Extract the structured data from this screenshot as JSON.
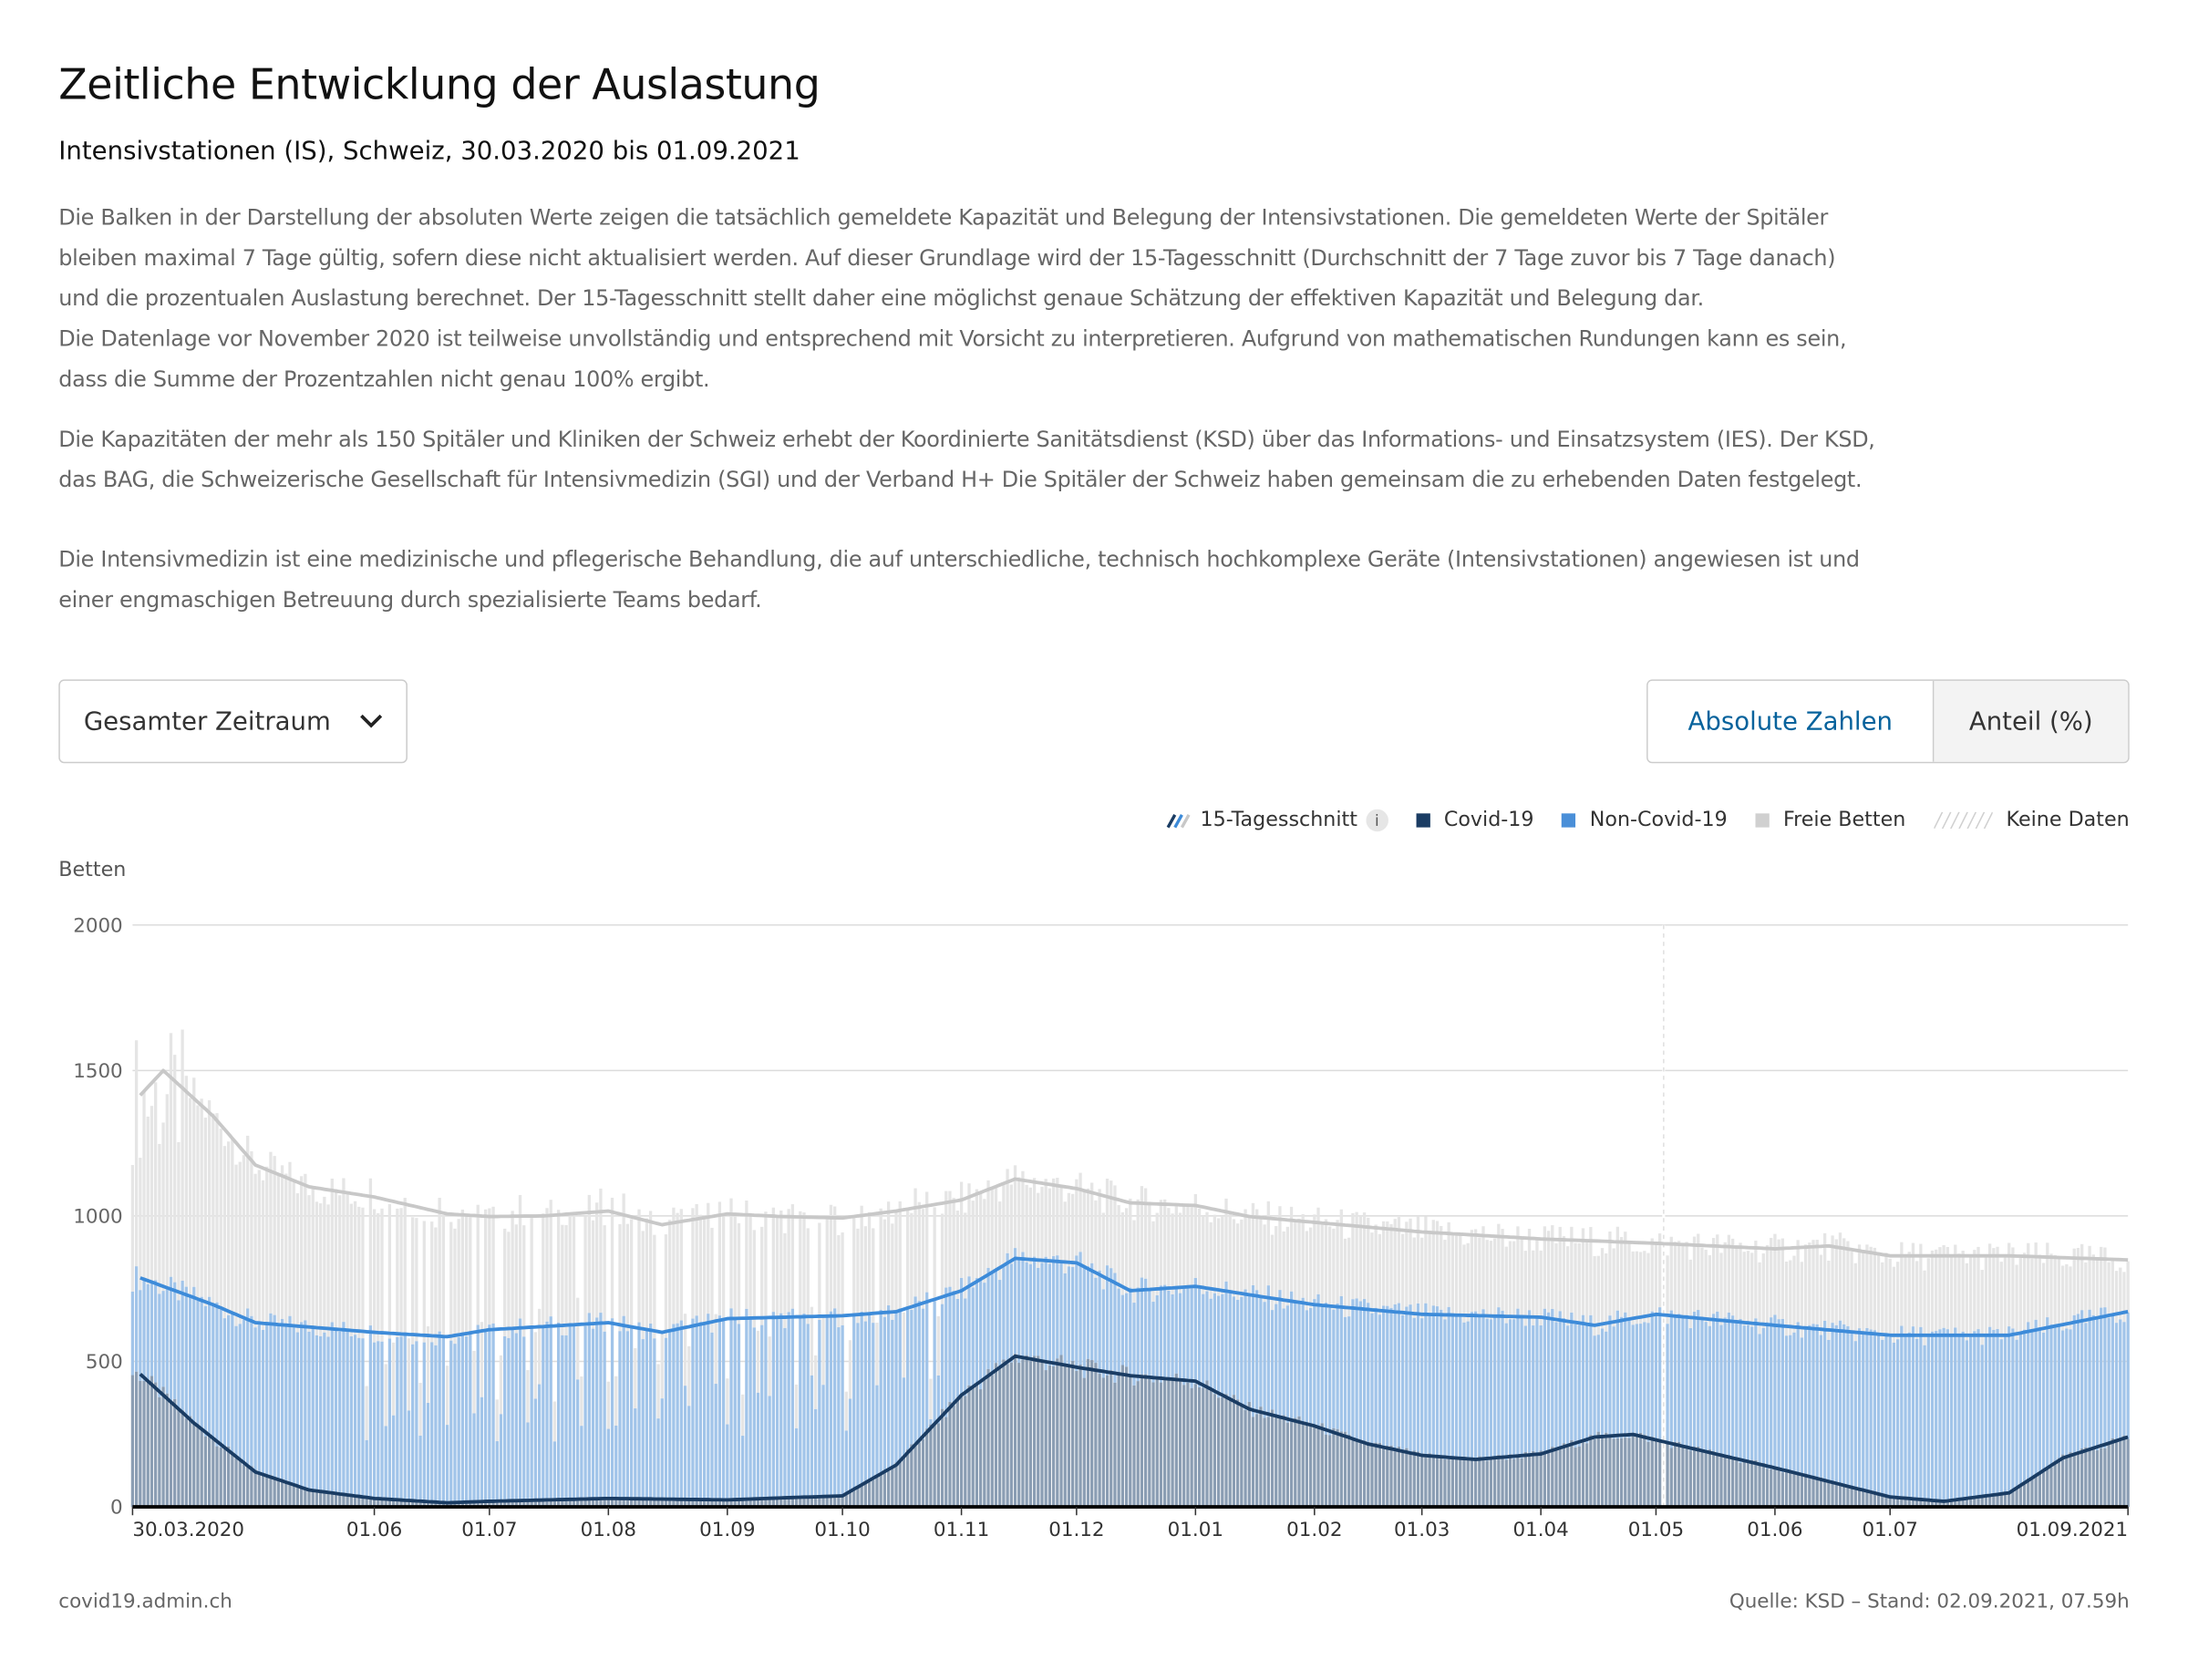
{
  "title": "Zeitliche Entwicklung der Auslastung",
  "subtitle": "Intensivstationen (IS), Schweiz, 30.03.2020 bis 01.09.2021",
  "description": {
    "p1": [
      "Die Balken in der Darstellung der absoluten Werte zeigen die tatsächlich gemeldete Kapazität und Belegung der Intensivstationen. Die gemeldeten Werte der Spitäler",
      "bleiben maximal 7 Tage gültig, sofern diese nicht aktualisiert werden. Auf dieser Grundlage wird der 15-Tagesschnitt (Durchschnitt der 7 Tage zuvor bis 7 Tage danach)",
      "und die prozentualen Auslastung berechnet. Der 15-Tagesschnitt stellt daher eine möglichst genaue Schätzung der effektiven Kapazität und Belegung dar.",
      "Die Datenlage vor November 2020 ist teilweise unvollständig und entsprechend mit Vorsicht zu interpretieren. Aufgrund von mathematischen Rundungen kann es sein,",
      "dass die Summe der Prozentzahlen nicht genau 100% ergibt."
    ],
    "p2": [
      "Die Kapazitäten der mehr als 150 Spitäler und Kliniken der Schweiz erhebt der Koordinierte Sanitätsdienst (KSD) über das Informations- und Einsatzsystem (IES). Der KSD,",
      "das BAG, die Schweizerische Gesellschaft für Intensivmedizin (SGI) und der Verband H+ Die Spitäler der Schweiz haben gemeinsam die zu erhebenden Daten festgelegt."
    ],
    "p3": [
      "Die Intensivmedizin ist eine medizinische und pflegerische Behandlung, die auf unterschiedliche, technisch hochkomplexe Geräte (Intensivstationen) angewiesen ist und",
      "einer engmaschigen Betreuung durch spezialisierte Teams bedarf."
    ]
  },
  "controls": {
    "period_select": "Gesamter Zeitraum",
    "toggle": [
      "Absolute Zahlen",
      "Anteil (%)"
    ],
    "toggle_active": "Absolute Zahlen"
  },
  "legend": {
    "avg": "15-Tagesschnitt",
    "covid": "Covid-19",
    "noncovid": "Non-Covid-19",
    "free": "Freie Betten",
    "nodata": "Keine Daten"
  },
  "colors": {
    "covid_bar": "#8a9db3",
    "noncovid_bar": "#a1c4e9",
    "free_bar": "#e5e5e5",
    "covid_line": "#1a3c63",
    "noncovid_line": "#3d8bd9",
    "free_line": "#c8c8c8",
    "accent": "#06629c"
  },
  "chart_data": {
    "type": "bar",
    "ylabel": "Betten",
    "ylim": [
      0,
      2000
    ],
    "yticks": [
      "0",
      "500",
      "1000",
      "1500",
      "2000"
    ],
    "xrange": [
      "30.03.2020",
      "01.09.2021"
    ],
    "xticks": [
      {
        "date": "30.03.2020",
        "label": "30.03.2020"
      },
      {
        "date": "01.06.2020",
        "label": "01.06"
      },
      {
        "date": "01.07.2020",
        "label": "01.07"
      },
      {
        "date": "01.08.2020",
        "label": "01.08"
      },
      {
        "date": "01.09.2020",
        "label": "01.09"
      },
      {
        "date": "01.10.2020",
        "label": "01.10"
      },
      {
        "date": "01.11.2020",
        "label": "01.11"
      },
      {
        "date": "01.12.2020",
        "label": "01.12"
      },
      {
        "date": "01.01.2021",
        "label": "01.01"
      },
      {
        "date": "01.02.2021",
        "label": "01.02"
      },
      {
        "date": "01.03.2021",
        "label": "01.03"
      },
      {
        "date": "01.04.2021",
        "label": "01.04"
      },
      {
        "date": "01.05.2021",
        "label": "01.05"
      },
      {
        "date": "01.06.2021",
        "label": "01.06"
      },
      {
        "date": "01.07.2021",
        "label": "01.07"
      },
      {
        "date": "01.09.2021",
        "label": "01.09.2021"
      }
    ],
    "no_data_dates": [
      "03.05.2021"
    ],
    "series_avg": {
      "covid": [
        [
          "01.04.2020",
          456
        ],
        [
          "15.04.2020",
          288
        ],
        [
          "01.05.2020",
          120
        ],
        [
          "15.05.2020",
          58
        ],
        [
          "01.06.2020",
          29
        ],
        [
          "20.06.2020",
          14
        ],
        [
          "01.07.2020",
          19
        ],
        [
          "01.08.2020",
          29
        ],
        [
          "01.09.2020",
          24
        ],
        [
          "01.10.2020",
          38
        ],
        [
          "15.10.2020",
          144
        ],
        [
          "01.11.2020",
          384
        ],
        [
          "15.11.2020",
          518
        ],
        [
          "01.12.2020",
          480
        ],
        [
          "15.12.2020",
          451
        ],
        [
          "01.01.2021",
          432
        ],
        [
          "15.01.2021",
          336
        ],
        [
          "01.02.2021",
          278
        ],
        [
          "15.02.2021",
          216
        ],
        [
          "01.03.2021",
          177
        ],
        [
          "15.03.2021",
          163
        ],
        [
          "01.04.2021",
          182
        ],
        [
          "15.04.2021",
          240
        ],
        [
          "25.04.2021",
          249
        ],
        [
          "01.05.2021",
          230
        ],
        [
          "01.06.2021",
          134
        ],
        [
          "01.07.2021",
          34
        ],
        [
          "15.07.2021",
          19
        ],
        [
          "01.08.2021",
          48
        ],
        [
          "15.08.2021",
          168
        ],
        [
          "01.09.2021",
          240
        ]
      ],
      "covid_plus_noncovid": [
        [
          "01.04.2020",
          787
        ],
        [
          "20.04.2020",
          695
        ],
        [
          "01.05.2020",
          633
        ],
        [
          "01.06.2020",
          600
        ],
        [
          "20.06.2020",
          585
        ],
        [
          "01.07.2020",
          609
        ],
        [
          "01.08.2020",
          633
        ],
        [
          "15.08.2020",
          600
        ],
        [
          "01.09.2020",
          647
        ],
        [
          "01.10.2020",
          657
        ],
        [
          "15.10.2020",
          671
        ],
        [
          "01.11.2020",
          743
        ],
        [
          "15.11.2020",
          854
        ],
        [
          "01.12.2020",
          839
        ],
        [
          "15.12.2020",
          743
        ],
        [
          "01.01.2021",
          758
        ],
        [
          "15.01.2021",
          729
        ],
        [
          "01.02.2021",
          695
        ],
        [
          "01.03.2021",
          662
        ],
        [
          "01.04.2021",
          652
        ],
        [
          "15.04.2021",
          624
        ],
        [
          "01.05.2021",
          662
        ],
        [
          "01.06.2021",
          624
        ],
        [
          "01.07.2021",
          590
        ],
        [
          "01.08.2021",
          590
        ],
        [
          "01.09.2021",
          671
        ]
      ],
      "total_capacity": [
        [
          "01.04.2020",
          1415
        ],
        [
          "07.04.2020",
          1500
        ],
        [
          "20.04.2020",
          1343
        ],
        [
          "01.05.2020",
          1175
        ],
        [
          "15.05.2020",
          1100
        ],
        [
          "01.06.2020",
          1065
        ],
        [
          "20.06.2020",
          1007
        ],
        [
          "01.07.2020",
          998
        ],
        [
          "15.07.2020",
          1000
        ],
        [
          "01.08.2020",
          1017
        ],
        [
          "15.08.2020",
          970
        ],
        [
          "01.09.2020",
          1007
        ],
        [
          "15.09.2020",
          998
        ],
        [
          "01.10.2020",
          993
        ],
        [
          "15.10.2020",
          1017
        ],
        [
          "01.11.2020",
          1055
        ],
        [
          "15.11.2020",
          1127
        ],
        [
          "01.12.2020",
          1094
        ],
        [
          "15.12.2020",
          1045
        ],
        [
          "01.01.2021",
          1036
        ],
        [
          "15.01.2021",
          998
        ],
        [
          "01.02.2021",
          978
        ],
        [
          "01.03.2021",
          945
        ],
        [
          "01.04.2021",
          921
        ],
        [
          "01.05.2021",
          906
        ],
        [
          "01.06.2021",
          887
        ],
        [
          "15.06.2021",
          897
        ],
        [
          "01.07.2021",
          863
        ],
        [
          "01.08.2021",
          863
        ],
        [
          "01.09.2021",
          849
        ]
      ]
    }
  },
  "footer": {
    "left": "covid19.admin.ch",
    "right": "Quelle: KSD – Stand: 02.09.2021, 07.59h"
  }
}
